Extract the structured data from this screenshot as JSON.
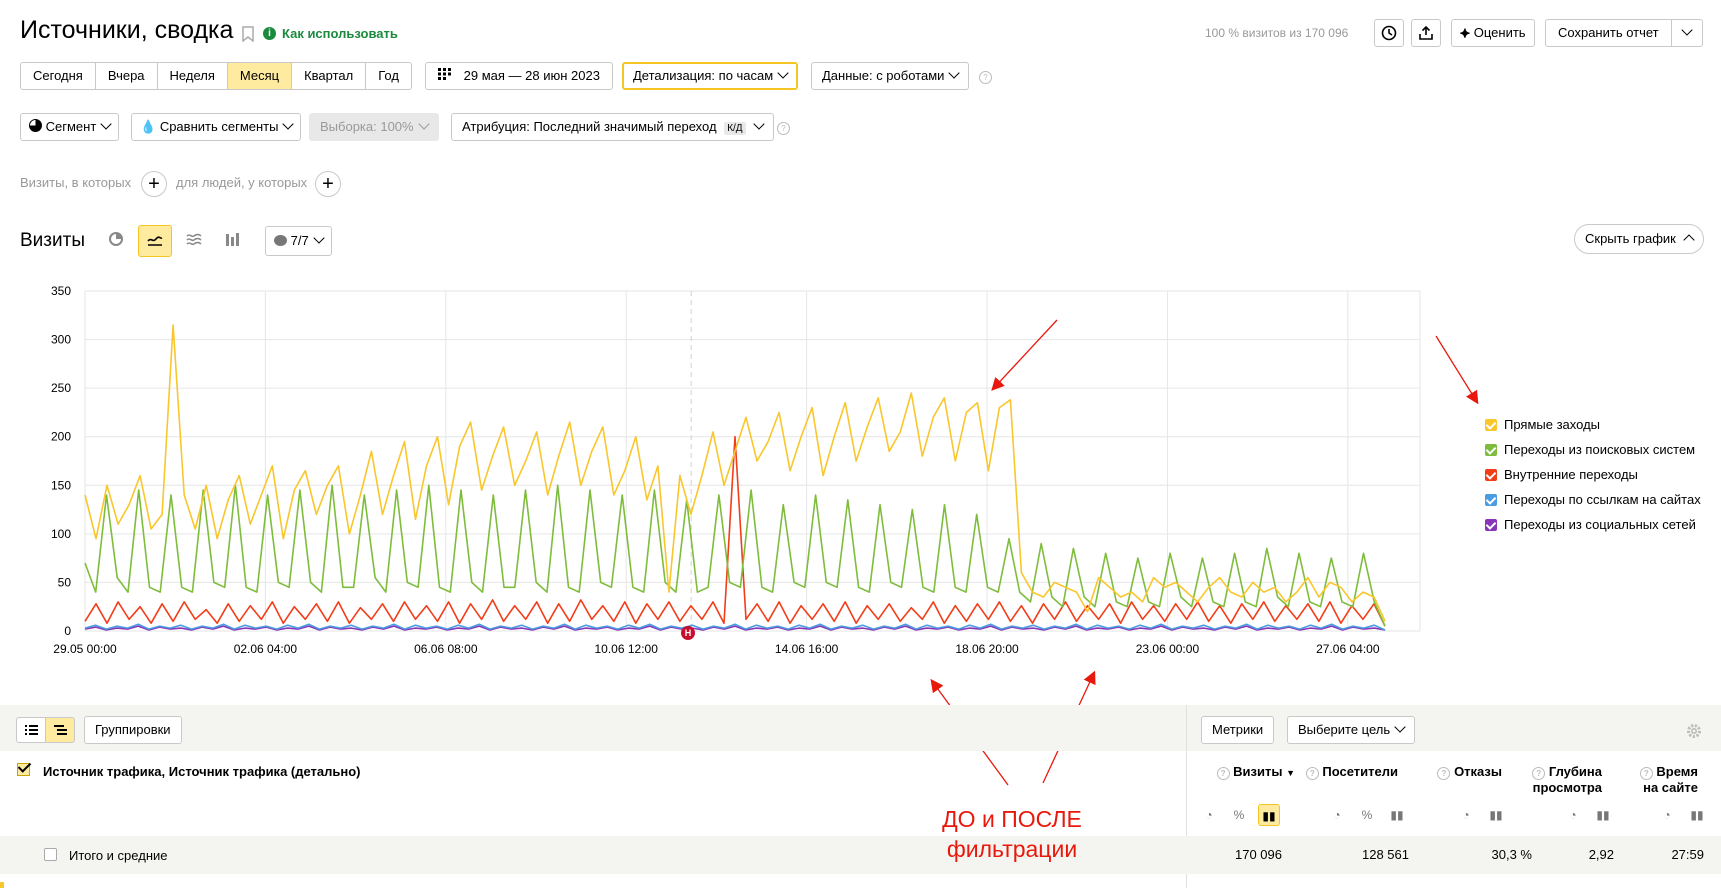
{
  "header": {
    "title": "Источники, сводка",
    "how_to_use": "Как использовать",
    "visits_share": "100 % визитов из 170 096",
    "rate_label": "Оценить",
    "save_report_label": "Сохранить отчет"
  },
  "periods": [
    "Сегодня",
    "Вчера",
    "Неделя",
    "Месяц",
    "Квартал",
    "Год"
  ],
  "active_period": "Месяц",
  "date_range": "29 мая — 28 июн 2023",
  "detail_label": "Детализация: по часам",
  "data_label": "Данные: с роботами",
  "segment_label": "Сегмент",
  "compare_label": "Сравнить сегменты",
  "sample_label": "Выборка: 100%",
  "attribution_label": "Атрибуция: Последний значимый переход",
  "attribution_badge": "К/Д",
  "filter": {
    "visits_where": "Визиты, в которых",
    "people_where": "для людей, у которых"
  },
  "chart_header": {
    "title": "Визиты",
    "notes_count": "7/7",
    "hide_chart": "Скрыть график"
  },
  "colors": {
    "direct": "#f9c62c",
    "search": "#7ebd3c",
    "internal": "#f23d19",
    "links": "#4a9de0",
    "social": "#8a35b8",
    "annotation": "#e8190c",
    "highlight": "#ffeba0"
  },
  "chart_data": {
    "type": "line",
    "ylim": [
      0,
      350
    ],
    "yticks": [
      "0",
      "50",
      "100",
      "150",
      "200",
      "250",
      "300",
      "350"
    ],
    "xticks": [
      "29.05 00:00",
      "02.06 04:00",
      "06.06 08:00",
      "10.06 12:00",
      "14.06 16:00",
      "18.06 20:00",
      "23.06 00:00",
      "27.06 04:00"
    ],
    "series": [
      {
        "name": "Прямые заходы",
        "color": "#f9c62c",
        "values": [
          140,
          95,
          150,
          110,
          130,
          160,
          105,
          120,
          315,
          140,
          105,
          150,
          95,
          135,
          160,
          110,
          140,
          170,
          95,
          145,
          165,
          120,
          150,
          170,
          100,
          140,
          185,
          120,
          160,
          195,
          115,
          170,
          200,
          130,
          190,
          215,
          145,
          180,
          210,
          150,
          175,
          205,
          140,
          180,
          215,
          150,
          185,
          210,
          140,
          165,
          200,
          135,
          170,
          40,
          160,
          120,
          160,
          205,
          150,
          185,
          220,
          175,
          195,
          225,
          165,
          200,
          230,
          160,
          200,
          235,
          175,
          210,
          240,
          185,
          205,
          245,
          180,
          220,
          240,
          175,
          225,
          235,
          165,
          230,
          238,
          60,
          40,
          35,
          50,
          45,
          40,
          20,
          55,
          45,
          35,
          40,
          30,
          55,
          45,
          50,
          40,
          30,
          45,
          55,
          40,
          35,
          50,
          40,
          45,
          30,
          40,
          55,
          35,
          50,
          45,
          30,
          40,
          35,
          10
        ]
      },
      {
        "name": "Переходы из поисковых систем",
        "color": "#7ebd3c",
        "values": [
          70,
          40,
          140,
          55,
          40,
          145,
          45,
          40,
          140,
          45,
          40,
          145,
          50,
          45,
          150,
          45,
          40,
          140,
          50,
          45,
          145,
          50,
          40,
          150,
          45,
          45,
          140,
          55,
          40,
          145,
          50,
          45,
          150,
          45,
          40,
          145,
          50,
          40,
          140,
          45,
          45,
          145,
          50,
          40,
          150,
          45,
          40,
          145,
          50,
          45,
          140,
          45,
          40,
          145,
          50,
          40,
          135,
          40,
          45,
          140,
          50,
          45,
          145,
          45,
          40,
          130,
          50,
          45,
          140,
          50,
          45,
          135,
          45,
          40,
          130,
          50,
          45,
          125,
          45,
          40,
          130,
          45,
          40,
          120,
          45,
          40,
          95,
          40,
          30,
          90,
          35,
          25,
          85,
          35,
          25,
          80,
          30,
          25,
          75,
          30,
          25,
          80,
          35,
          25,
          75,
          30,
          25,
          80,
          30,
          25,
          85,
          35,
          25,
          80,
          30,
          25,
          75,
          30,
          25,
          80,
          30,
          5
        ]
      },
      {
        "name": "Внутренние переходы",
        "color": "#f23d19",
        "values": [
          10,
          28,
          8,
          30,
          12,
          25,
          8,
          28,
          10,
          30,
          12,
          22,
          8,
          28,
          10,
          26,
          12,
          30,
          8,
          25,
          12,
          28,
          10,
          30,
          8,
          24,
          12,
          28,
          10,
          30,
          12,
          26,
          10,
          30,
          8,
          28,
          12,
          32,
          10,
          26,
          12,
          30,
          8,
          28,
          10,
          32,
          12,
          26,
          10,
          30,
          8,
          28,
          12,
          30,
          10,
          26,
          12,
          30,
          8,
          200,
          12,
          28,
          10,
          30,
          8,
          26,
          12,
          28,
          10,
          30,
          8,
          26,
          12,
          28,
          10,
          24,
          12,
          30,
          8,
          26,
          10,
          28,
          12,
          30,
          10,
          26,
          8,
          28,
          12,
          30,
          10,
          26,
          12,
          28,
          8,
          30,
          12,
          26,
          10,
          28,
          12,
          30,
          10,
          26,
          8,
          28,
          12,
          30,
          10,
          26,
          12,
          28,
          10,
          30,
          8,
          26,
          12,
          28,
          5
        ]
      },
      {
        "name": "Переходы по ссылкам на сайтах",
        "color": "#4a9de0",
        "values": [
          3,
          6,
          2,
          5,
          3,
          7,
          2,
          5,
          3,
          6,
          2,
          5,
          3,
          7,
          2,
          6,
          3,
          5,
          2,
          6,
          3,
          7,
          2,
          5,
          3,
          6,
          2,
          5,
          3,
          7,
          2,
          6,
          3,
          5,
          2,
          6,
          3,
          7,
          2,
          5,
          3,
          6,
          2,
          5,
          3,
          7,
          2,
          6,
          3,
          5,
          2,
          6,
          3,
          7,
          2,
          5,
          3,
          6,
          2,
          5,
          3,
          7,
          2,
          6,
          3,
          5,
          2,
          6,
          3,
          7,
          2,
          5,
          3,
          6,
          2,
          5,
          3,
          7,
          2,
          6,
          3,
          5,
          2,
          6,
          3,
          7,
          2,
          5,
          3,
          6,
          2,
          5,
          3,
          7,
          2,
          6,
          3,
          5,
          2,
          6,
          3,
          7,
          2,
          5,
          3,
          6,
          2,
          5,
          3,
          7,
          2,
          6,
          3,
          5,
          2,
          6,
          3,
          7,
          2,
          5,
          3,
          6,
          1
        ]
      },
      {
        "name": "Переходы из социальных сетей",
        "color": "#8a35b8",
        "values": [
          2,
          4,
          1,
          3,
          2,
          5,
          1,
          4,
          2,
          3,
          1,
          4,
          2,
          5,
          1,
          3,
          2,
          4,
          1,
          3,
          2,
          5,
          1,
          4,
          2,
          3,
          1,
          4,
          2,
          5,
          1,
          3,
          2,
          4,
          1,
          3,
          2,
          5,
          1,
          4,
          2,
          3,
          1,
          4,
          2,
          5,
          1,
          3,
          2,
          4,
          1,
          3,
          2,
          5,
          1,
          4,
          2,
          3,
          1,
          4,
          2,
          5,
          1,
          3,
          2,
          4,
          1,
          3,
          2,
          5,
          1,
          4,
          2,
          3,
          1,
          4,
          2,
          5,
          1,
          3,
          2,
          4,
          1,
          3,
          2,
          5,
          1,
          4,
          2,
          3,
          1,
          4,
          2,
          5,
          1,
          3,
          2,
          4,
          1,
          3,
          2,
          5,
          1,
          4,
          2,
          3,
          1,
          4,
          2,
          5,
          1,
          3,
          2,
          4,
          1,
          3,
          2,
          5,
          1,
          4,
          2,
          3,
          1
        ]
      }
    ]
  },
  "annotation": {
    "marker_letter": "Н",
    "caption_line1": "ДО и ПОСЛЕ",
    "caption_line2": "фильтрации"
  },
  "table": {
    "groupings_label": "Группировки",
    "metrics_label": "Метрики",
    "goal_label": "Выберите цель",
    "dimension_header": "Источник трафика, Источник трафика (детально)",
    "columns": [
      {
        "l1": "Визиты",
        "l2": ""
      },
      {
        "l1": "Посетители",
        "l2": ""
      },
      {
        "l1": "Отказы",
        "l2": ""
      },
      {
        "l1": "Глубина",
        "l2": "просмотра"
      },
      {
        "l1": "Время",
        "l2": "на сайте"
      }
    ],
    "sort_arrow": "▼",
    "totals_label": "Итого и средние",
    "totals": [
      "170 096",
      "128 561",
      "30,3 %",
      "2,92",
      "27:59"
    ]
  }
}
